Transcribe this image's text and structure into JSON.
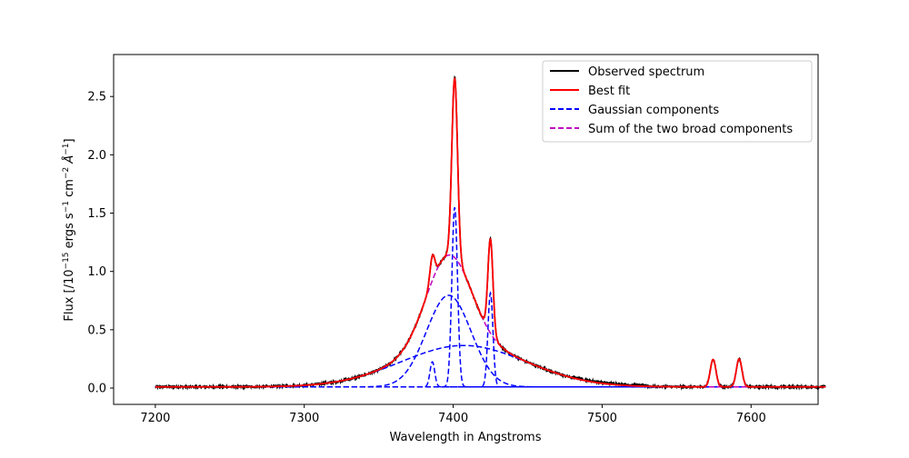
{
  "chart_data": {
    "type": "line",
    "title": "",
    "xlabel": "Wavelength in Angstroms",
    "ylabel": {
      "prefix": "Flux [/10",
      "exp1": "−15",
      "mid1": " ergs s",
      "exp2": "−1",
      "mid2": " cm",
      "exp3": "−2",
      "mid3": " Å",
      "exp4": "−1",
      "suffix": "]"
    },
    "xlim": [
      7172,
      7645
    ],
    "ylim": [
      -0.14,
      2.86
    ],
    "x_ticks": [
      7200,
      7300,
      7400,
      7500,
      7600
    ],
    "x_tick_labels": [
      "7200",
      "7300",
      "7400",
      "7500",
      "7600"
    ],
    "y_ticks": [
      0.0,
      0.5,
      1.0,
      1.5,
      2.0,
      2.5
    ],
    "y_tick_labels": [
      "0.0",
      "0.5",
      "1.0",
      "1.5",
      "2.0",
      "2.5"
    ],
    "grid": false,
    "legend_position": "top-right",
    "x_range": [
      7200,
      7650
    ],
    "series": [
      {
        "name": "Observed spectrum",
        "color": "#000000",
        "style": "solid",
        "role": "observed"
      },
      {
        "name": "Best fit",
        "color": "#ff0000",
        "style": "solid",
        "role": "fit"
      },
      {
        "name": "Gaussian components",
        "color": "#0000ff",
        "style": "dashed",
        "role": "components"
      },
      {
        "name": "Sum of the two broad components",
        "color": "#bf00bf",
        "style": "dashed",
        "role": "broad_sum"
      }
    ],
    "baseline": 0.01,
    "gaussian_components": [
      {
        "id": "broad-very-wide",
        "center": 7407,
        "amplitude": 0.355,
        "sigma": 42
      },
      {
        "id": "broad-intermediate",
        "center": 7397,
        "amplitude": 0.785,
        "sigma": 15
      },
      {
        "id": "narrow-7386",
        "center": 7386,
        "amplitude": 0.215,
        "sigma": 1.6
      },
      {
        "id": "narrow-7401",
        "center": 7401,
        "amplitude": 1.54,
        "sigma": 1.9
      },
      {
        "id": "narrow-7425",
        "center": 7425,
        "amplitude": 0.805,
        "sigma": 1.7
      },
      {
        "id": "narrow-7575",
        "center": 7574.5,
        "amplitude": 0.235,
        "sigma": 1.9
      },
      {
        "id": "narrow-7592",
        "center": 7592,
        "amplitude": 0.24,
        "sigma": 1.9
      }
    ]
  }
}
